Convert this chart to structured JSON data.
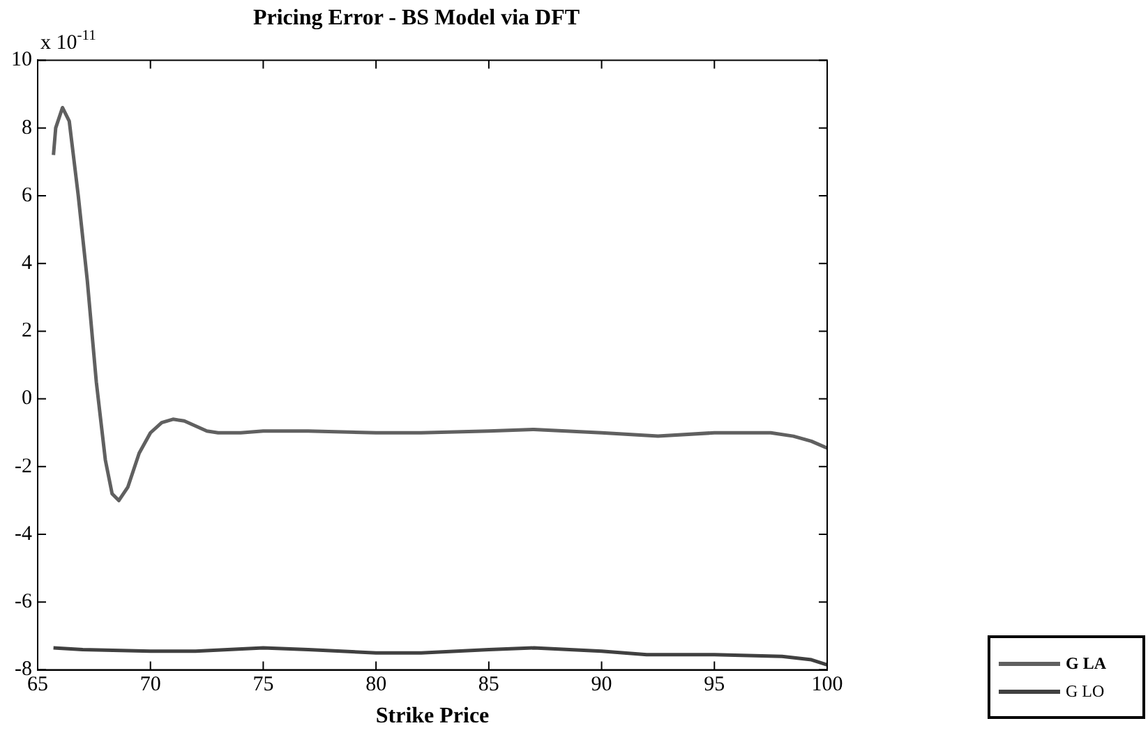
{
  "chart_data": {
    "type": "line",
    "title": "Pricing Error - BS Model via DFT",
    "xlabel": "Strike Price",
    "annotations": [
      "x 10$^{-11}$"
    ],
    "xlim": [
      65,
      100
    ],
    "xticks": [
      65,
      70,
      75,
      80,
      85,
      90,
      95,
      100
    ],
    "ylim": [
      -8,
      10
    ],
    "yticks": [
      -8,
      -6,
      -4,
      -2,
      0,
      2,
      4,
      6,
      8,
      10
    ],
    "grid": false,
    "legend": "bottom right",
    "marker": "none",
    "line_style": "solid",
    "series": [
      {
        "name": "G LA",
        "color": "#606060",
        "x": [
          65.7,
          65.8,
          66.1,
          66.4,
          66.8,
          67.2,
          67.6,
          68.0,
          68.3,
          68.6,
          69.0,
          69.5,
          70.0,
          70.5,
          71.0,
          71.5,
          72.0,
          72.5,
          73.0,
          74.0,
          75.0,
          77.0,
          80.0,
          82.0,
          85.0,
          87.0,
          90.0,
          92.5,
          95.0,
          97.5,
          98.5,
          99.3,
          100.0
        ],
        "values": [
          7.2,
          8.0,
          8.6,
          8.2,
          6.0,
          3.5,
          0.5,
          -1.8,
          -2.8,
          -3.0,
          -2.6,
          -1.6,
          -1.0,
          -0.7,
          -0.6,
          -0.65,
          -0.8,
          -0.95,
          -1.0,
          -1.0,
          -0.95,
          -0.95,
          -1.0,
          -1.0,
          -0.95,
          -0.9,
          -1.0,
          -1.1,
          -1.0,
          -1.0,
          -1.1,
          -1.25,
          -1.45
        ]
      },
      {
        "name": "G LO",
        "color": "#404040",
        "x": [
          65.7,
          67,
          70,
          72,
          75,
          77,
          80,
          82,
          85,
          87,
          90,
          92,
          95,
          98,
          99.3,
          100
        ],
        "values": [
          -7.35,
          -7.4,
          -7.45,
          -7.45,
          -7.35,
          -7.4,
          -7.5,
          -7.5,
          -7.4,
          -7.35,
          -7.45,
          -7.55,
          -7.55,
          -7.6,
          -7.7,
          -7.85
        ]
      }
    ]
  }
}
